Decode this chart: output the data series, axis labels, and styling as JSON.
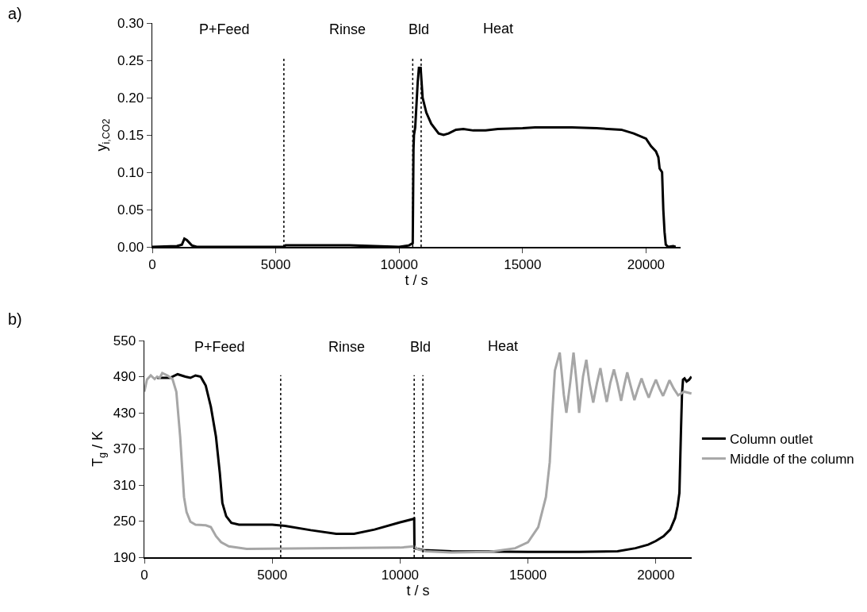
{
  "chart_data": [
    {
      "type": "line",
      "xlabel": "t / s",
      "ylabel": "y$_{i,CO2}$",
      "xlim": [
        0,
        21400
      ],
      "xticks": [
        0,
        5000,
        10000,
        15000,
        20000
      ],
      "ylim": [
        0,
        0.3
      ],
      "yticks": [
        {
          "value": 0,
          "label": "0.00"
        },
        {
          "value": 0.05,
          "label": "0.05"
        },
        {
          "value": 0.1,
          "label": "0.10"
        },
        {
          "value": 0.15,
          "label": "0.15"
        },
        {
          "value": 0.2,
          "label": "0.20"
        },
        {
          "value": 0.25,
          "label": "0.25"
        },
        {
          "value": 0.3,
          "label": "0.30"
        }
      ],
      "grid": false,
      "legend": false,
      "line_style": "solid",
      "marker": "none",
      "series": [
        {
          "color": "#000000",
          "x": [
            0,
            1000,
            1200,
            1300,
            1400,
            1600,
            1800,
            5300,
            5400,
            8000,
            9000,
            10000,
            10400,
            10550,
            10580,
            10600,
            10650,
            10750,
            10800,
            10870,
            10950,
            11100,
            11300,
            11600,
            11800,
            12000,
            12300,
            12600,
            13000,
            13500,
            14000,
            15000,
            15500,
            17000,
            18000,
            19000,
            19500,
            20000,
            20200,
            20400,
            20500,
            20550,
            20650,
            20700,
            20750,
            20800,
            20900,
            21100,
            21200
          ],
          "values": [
            0,
            0.001,
            0.003,
            0.011,
            0.009,
            0.002,
            0,
            0,
            0.002,
            0.002,
            0.001,
            0,
            0.002,
            0.005,
            0.13,
            0.15,
            0.16,
            0.22,
            0.24,
            0.24,
            0.2,
            0.18,
            0.165,
            0.152,
            0.15,
            0.152,
            0.157,
            0.158,
            0.156,
            0.156,
            0.158,
            0.159,
            0.16,
            0.16,
            0.159,
            0.157,
            0.152,
            0.145,
            0.135,
            0.128,
            0.12,
            0.105,
            0.1,
            0.05,
            0.02,
            0.003,
            0,
            0.001,
            0
          ]
        }
      ],
      "ref_lines": [
        {
          "axis": "x",
          "value": 5330,
          "line_style": "dotted",
          "color": "#000000"
        },
        {
          "axis": "x",
          "value": 10550,
          "line_style": "dotted",
          "color": "#000000"
        },
        {
          "axis": "x",
          "value": 10890,
          "line_style": "dotted",
          "color": "#000000"
        }
      ],
      "annotations": [
        "a)",
        "P+Feed",
        "Rinse",
        "Bld",
        "Heat"
      ]
    },
    {
      "type": "line",
      "xlabel": "t / s",
      "ylabel": "T$_{g}$ / K",
      "xlim": [
        0,
        21400
      ],
      "xticks": [
        0,
        5000,
        10000,
        15000,
        20000
      ],
      "ylim": [
        190,
        550
      ],
      "yticks": [
        190,
        250,
        310,
        370,
        430,
        490,
        550
      ],
      "grid": false,
      "legend": "right",
      "line_style": "solid",
      "marker": "none",
      "series": [
        {
          "name": "Column outlet",
          "color": "#000000",
          "x": [
            500,
            1000,
            1300,
            1600,
            1800,
            2000,
            2200,
            2400,
            2600,
            2800,
            2950,
            3050,
            3200,
            3400,
            3700,
            5000,
            5500,
            6500,
            7500,
            8200,
            9000,
            10000,
            10550,
            10560,
            10900,
            12000,
            15000,
            17000,
            18500,
            19200,
            19700,
            20000,
            20300,
            20560,
            20750,
            20850,
            20920,
            20980,
            21020,
            21060,
            21120,
            21200,
            21300,
            21390
          ],
          "values": [
            488,
            488,
            494,
            490,
            488,
            492,
            490,
            475,
            440,
            390,
            330,
            280,
            258,
            247,
            244,
            244,
            242,
            235,
            229,
            229,
            236,
            248,
            254,
            205,
            202,
            200,
            199,
            199,
            200,
            205,
            211,
            217,
            225,
            236,
            255,
            275,
            297,
            399,
            460,
            485,
            487,
            482,
            485,
            490
          ]
        },
        {
          "name": "Middle of the column",
          "color": "#a6a6a6",
          "x": [
            0,
            100,
            250,
            400,
            500,
            600,
            700,
            900,
            1100,
            1250,
            1400,
            1550,
            1650,
            1800,
            2000,
            2400,
            2600,
            2800,
            3000,
            3300,
            4000,
            10000,
            10550,
            10700,
            11000,
            12000,
            13500,
            14500,
            15000,
            15400,
            15700,
            15850,
            15950,
            16050,
            16240,
            16400,
            16500,
            16650,
            16780,
            16900,
            17000,
            17150,
            17280,
            17400,
            17550,
            17700,
            17830,
            17950,
            18080,
            18220,
            18360,
            18500,
            18640,
            18760,
            18880,
            19000,
            19160,
            19300,
            19440,
            19580,
            19720,
            19850,
            20000,
            20140,
            20280,
            20400,
            20530,
            20700,
            20870,
            21100,
            21390
          ],
          "values": [
            465,
            485,
            492,
            486,
            490,
            488,
            496,
            492,
            486,
            465,
            390,
            290,
            265,
            249,
            244,
            243,
            240,
            225,
            215,
            208,
            204,
            206,
            208,
            203,
            200,
            198,
            199,
            205,
            215,
            240,
            290,
            348,
            430,
            500,
            530,
            460,
            430,
            480,
            530,
            480,
            430,
            490,
            518,
            480,
            447,
            480,
            504,
            475,
            448,
            480,
            502,
            478,
            450,
            475,
            497,
            477,
            451,
            470,
            487,
            470,
            455,
            470,
            485,
            470,
            458,
            470,
            484,
            470,
            459,
            465,
            462
          ]
        }
      ],
      "ref_lines": [
        {
          "axis": "x",
          "value": 5330,
          "line_style": "dotted",
          "color": "#000000"
        },
        {
          "axis": "x",
          "value": 10550,
          "line_style": "dotted",
          "color": "#000000"
        },
        {
          "axis": "x",
          "value": 10890,
          "line_style": "dotted",
          "color": "#000000"
        }
      ],
      "annotations": [
        "b)",
        "P+Feed",
        "Rinse",
        "Bld",
        "Heat"
      ]
    }
  ]
}
